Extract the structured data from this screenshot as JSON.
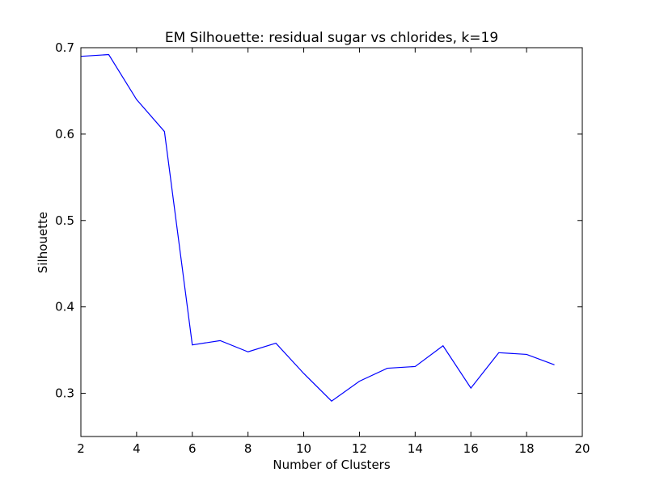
{
  "chart_data": {
    "type": "line",
    "title": "EM Silhouette: residual sugar vs chlorides, k=19",
    "xlabel": "Number of Clusters",
    "ylabel": "Silhouette",
    "xlim": [
      2,
      20
    ],
    "ylim": [
      0.25,
      0.7
    ],
    "xticks": [
      2,
      4,
      6,
      8,
      10,
      12,
      14,
      16,
      18,
      20
    ],
    "yticks": [
      0.3,
      0.4,
      0.5,
      0.6,
      0.7
    ],
    "ytick_labels": [
      "0.3",
      "0.4",
      "0.5",
      "0.6",
      "0.7"
    ],
    "grid": false,
    "legend": "none",
    "series": [
      {
        "color": "#0000ff",
        "x": [
          2,
          3,
          4,
          5,
          6,
          7,
          8,
          9,
          10,
          11,
          12,
          13,
          14,
          15,
          16,
          17,
          18,
          19
        ],
        "y": [
          0.69,
          0.692,
          0.64,
          0.603,
          0.356,
          0.361,
          0.348,
          0.358,
          0.323,
          0.291,
          0.314,
          0.329,
          0.331,
          0.355,
          0.306,
          0.347,
          0.345,
          0.333
        ]
      }
    ]
  }
}
